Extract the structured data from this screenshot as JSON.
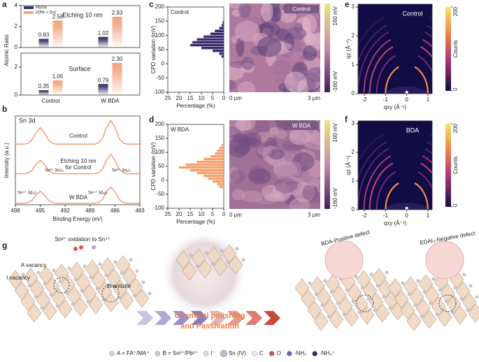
{
  "panel_labels": [
    "a",
    "b",
    "c",
    "d",
    "e",
    "f",
    "g"
  ],
  "chart_data": [
    {
      "type": "bar",
      "ylabel": "Atomic Ratio",
      "categories": [
        "Control",
        "W BDA"
      ],
      "series": [
        {
          "name": "Pb/Sn",
          "color": "#3b3168"
        },
        {
          "name": "I/(Pb + Sn)",
          "color": "#f4a582"
        }
      ],
      "panels": [
        {
          "title": "Etching 10 nm",
          "ylim": [
            0,
            4
          ],
          "yticks": [
            0,
            2,
            4
          ],
          "series": [
            {
              "values": [
                0.83,
                1.02
              ],
              "value_labels": [
                "0.83",
                "1.02"
              ]
            },
            {
              "values": [
                2.58,
                2.93
              ],
              "value_labels": [
                "2.58",
                "2.93"
              ]
            }
          ]
        },
        {
          "title": "Surface",
          "ylim": [
            0,
            3
          ],
          "yticks": [
            0,
            2
          ],
          "series": [
            {
              "values": [
                0.35,
                0.79
              ],
              "value_labels": [
                "0.35",
                "0.79"
              ]
            },
            {
              "values": [
                1.05,
                2.3
              ],
              "value_labels": [
                "1.05",
                "2.30"
              ]
            }
          ]
        }
      ]
    },
    {
      "type": "line",
      "xlabel": "Binding Energy (eV)",
      "ylabel": "Intensity (a.u.)",
      "xlim": [
        498,
        483
      ],
      "xticks": [
        498,
        495,
        492,
        489,
        486,
        483
      ],
      "ylim": [
        0,
        3
      ],
      "x": [
        498,
        497.5,
        497,
        496.5,
        496,
        495.5,
        495,
        494.5,
        494,
        493.5,
        493,
        492.5,
        492,
        491.5,
        491,
        490.5,
        490,
        489.5,
        489,
        488.5,
        488,
        487.5,
        487,
        486.5,
        486,
        485.5,
        485,
        484.5,
        484,
        483.5,
        483
      ],
      "series": [
        {
          "color": "#e9926a",
          "values": [
            2.05,
            2.05,
            2.05,
            2.07,
            2.19,
            2.44,
            2.6,
            2.44,
            2.19,
            2.07,
            2.05,
            2.05,
            2.05,
            2.05,
            2.05,
            2.05,
            2.05,
            2.05,
            2.05,
            2.05,
            2.08,
            2.25,
            2.62,
            2.85,
            2.62,
            2.25,
            2.08,
            2.05,
            2.05,
            2.05,
            2.05
          ]
        },
        {
          "color": "#e9926a",
          "values": [
            1.05,
            1.05,
            1.05,
            1.07,
            1.16,
            1.37,
            1.5,
            1.37,
            1.16,
            1.07,
            1.05,
            1.05,
            1.05,
            1.05,
            1.05,
            1.05,
            1.05,
            1.05,
            1.05,
            1.05,
            1.08,
            1.21,
            1.51,
            1.7,
            1.51,
            1.21,
            1.08,
            1.05,
            1.05,
            1.05,
            1.05
          ]
        },
        {
          "color": "#e9926a",
          "values": [
            0.05,
            0.05,
            0.05,
            0.07,
            0.15,
            0.33,
            0.45,
            0.33,
            0.15,
            0.07,
            0.05,
            0.05,
            0.05,
            0.05,
            0.05,
            0.05,
            0.05,
            0.05,
            0.05,
            0.05,
            0.07,
            0.19,
            0.44,
            0.6,
            0.44,
            0.19,
            0.07,
            0.05,
            0.05,
            0.05,
            0.05
          ]
        }
      ],
      "annotations": [
        "Sn 3d",
        "Control",
        "Etching 10 nm",
        "for Control",
        "W BDA",
        "Sn²⁺ 3d₃/₂",
        "Sn²⁺ 3d₅/₂",
        "Sn⁴⁺ 3d₃/₂",
        "Sn⁴⁺ 3d₅/₂"
      ]
    },
    {
      "type": "histogram",
      "orientation": "horizontal",
      "label": "Control",
      "xlabel": "Percentage (%)",
      "ylabel": "CPD variation (mV)",
      "xlim": [
        25,
        0
      ],
      "xticks": [
        25,
        20,
        15,
        10,
        5,
        0
      ],
      "ylim": [
        -100,
        200
      ],
      "yticks": [
        200,
        150,
        100,
        50,
        0,
        -50,
        -100
      ],
      "bins": [
        20,
        30,
        40,
        50,
        60,
        70,
        80,
        90,
        100,
        110,
        120,
        130,
        140,
        150
      ],
      "values": [
        1,
        2,
        5,
        10,
        15,
        14,
        12,
        9,
        6,
        4,
        2,
        1,
        0.5
      ],
      "color": "#3b2a6b"
    },
    {
      "type": "histogram",
      "orientation": "horizontal",
      "label": "W BDA",
      "xlabel": "Percentage (%)",
      "ylabel": "CPD variation (mV)",
      "xlim": [
        25,
        0
      ],
      "xticks": [
        25,
        20,
        15,
        10,
        5,
        0
      ],
      "ylim": [
        -100,
        200
      ],
      "yticks": [
        200,
        150,
        100,
        50,
        0,
        -50,
        -100
      ],
      "bins": [
        -30,
        -20,
        -10,
        0,
        10,
        20,
        30,
        40,
        50,
        60,
        70,
        80,
        90,
        100,
        110,
        120,
        130
      ],
      "values": [
        2,
        3,
        5,
        7,
        9,
        12,
        15,
        20,
        17,
        12,
        9,
        6,
        4,
        3,
        2,
        1
      ],
      "color": "#f3a26f"
    },
    {
      "type": "image",
      "label": "Control",
      "xlabel": "qxy (Å⁻¹)",
      "ylabel": "qz (Å⁻¹)",
      "xlim": [
        -2.3,
        1.2
      ],
      "ylim": [
        0,
        3.1
      ],
      "xticks": [
        -2,
        -1,
        0,
        1
      ],
      "yticks": [
        0,
        1,
        2,
        3
      ],
      "colorbar_label": "Counts",
      "clim": [
        0,
        200
      ],
      "colorbar_ticks": [
        0,
        200
      ]
    },
    {
      "type": "image",
      "label": "BDA",
      "xlabel": "qxy (Å⁻¹)",
      "ylabel": "qz (Å⁻¹)",
      "xlim": [
        -2.3,
        1.2
      ],
      "ylim": [
        0,
        3.1
      ],
      "xticks": [
        -2,
        -1,
        0,
        1
      ],
      "yticks": [
        0,
        1,
        2,
        3
      ],
      "colorbar_label": "Counts",
      "clim": [
        0,
        200
      ],
      "colorbar_ticks": [
        0,
        200
      ]
    }
  ],
  "maps": [
    {
      "label": "Control",
      "scale_max": "160 mV",
      "scale_min": "-160 mV",
      "x_start": "0 μm",
      "x_end": "3 μm"
    },
    {
      "label": "W BDA",
      "scale_max": "160 mV",
      "scale_min": "-160 mV",
      "x_start": "0 μm",
      "x_end": "3 μm"
    }
  ],
  "schematic": {
    "labels": [
      "Sn²⁺ oxidation to Sn⁴⁺",
      "A vacancy",
      "I vacancy",
      "Bᵢ antisite",
      "Chemical polishing",
      "and Passivation",
      "BDA-Positive defect",
      "EDAI₂-Negative defect"
    ],
    "legend": [
      "A = FA⁺/MA⁺",
      "B = Sn²⁺/Pb²⁺",
      "I⁻",
      "Sn (IV)",
      "C",
      "O",
      "-NH₂",
      "-NH₃⁺"
    ]
  }
}
